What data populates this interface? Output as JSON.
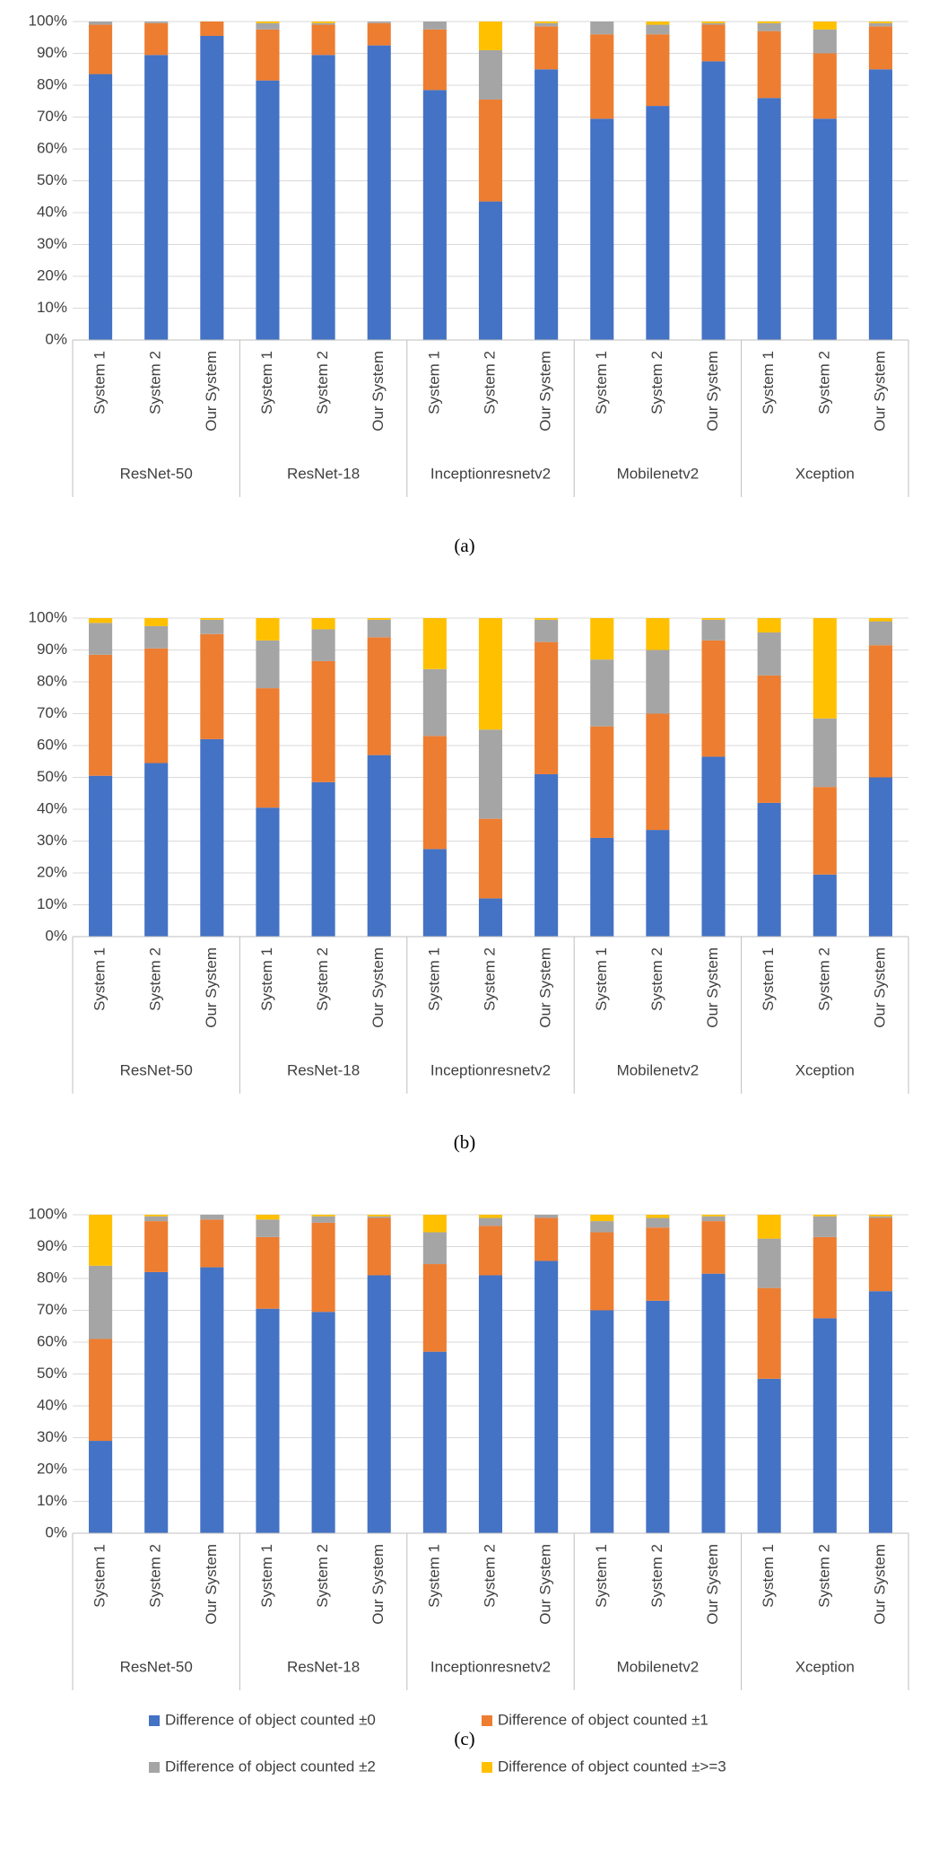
{
  "chart_data": [
    {
      "type": "bar",
      "stacked": true,
      "caption": "(a)",
      "categories": [
        "System 1",
        "System 2",
        "Our System",
        "System 1",
        "System 2",
        "Our System",
        "System 1",
        "System 2",
        "Our System",
        "System 1",
        "System 2",
        "Our System",
        "System 1",
        "System 2",
        "Our System"
      ],
      "groups": [
        "ResNet-50",
        "ResNet-18",
        "Inceptionresnetv2",
        "Mobilenetv2",
        "Xception"
      ],
      "ylim": [
        0,
        100
      ],
      "yticks": [
        {
          "value": 0,
          "label": "0%"
        },
        {
          "value": 10,
          "label": "10%"
        },
        {
          "value": 20,
          "label": "20%"
        },
        {
          "value": 30,
          "label": "30%"
        },
        {
          "value": 40,
          "label": "40%"
        },
        {
          "value": 50,
          "label": "50%"
        },
        {
          "value": 60,
          "label": "60%"
        },
        {
          "value": 70,
          "label": "70%"
        },
        {
          "value": 80,
          "label": "80%"
        },
        {
          "value": 90,
          "label": "90%"
        },
        {
          "value": 100,
          "label": "100%"
        }
      ],
      "grid": true,
      "series": [
        {
          "color": "#4472c4",
          "values": [
            83.5,
            89.5,
            95.5,
            81.5,
            89.5,
            92.5,
            78.5,
            43.5,
            85,
            69.5,
            73.5,
            87.5,
            76,
            69.5,
            85
          ]
        },
        {
          "color": "#ed7d31",
          "values": [
            15.5,
            10,
            4.5,
            16,
            9.5,
            7,
            19,
            32,
            13.5,
            26.5,
            22.5,
            11.5,
            21,
            20.5,
            13.5
          ]
        },
        {
          "color": "#a5a5a5",
          "values": [
            1,
            0.5,
            0,
            2,
            0.5,
            0.5,
            2.5,
            15.5,
            1,
            4,
            3,
            0.5,
            2.5,
            7.5,
            1
          ]
        },
        {
          "color": "#ffc000",
          "values": [
            0,
            0,
            0,
            0.5,
            0.5,
            0,
            0,
            9,
            0.5,
            0,
            1,
            0.5,
            0.5,
            2.5,
            0.5
          ]
        }
      ]
    },
    {
      "type": "bar",
      "stacked": true,
      "caption": "(b)",
      "categories": [
        "System 1",
        "System 2",
        "Our System",
        "System 1",
        "System 2",
        "Our System",
        "System 1",
        "System 2",
        "Our System",
        "System 1",
        "System 2",
        "Our System",
        "System 1",
        "System 2",
        "Our System"
      ],
      "groups": [
        "ResNet-50",
        "ResNet-18",
        "Inceptionresnetv2",
        "Mobilenetv2",
        "Xception"
      ],
      "ylim": [
        0,
        100
      ],
      "yticks": [
        {
          "value": 0,
          "label": "0%"
        },
        {
          "value": 10,
          "label": "10%"
        },
        {
          "value": 20,
          "label": "20%"
        },
        {
          "value": 30,
          "label": "30%"
        },
        {
          "value": 40,
          "label": "40%"
        },
        {
          "value": 50,
          "label": "50%"
        },
        {
          "value": 60,
          "label": "60%"
        },
        {
          "value": 70,
          "label": "70%"
        },
        {
          "value": 80,
          "label": "80%"
        },
        {
          "value": 90,
          "label": "90%"
        },
        {
          "value": 100,
          "label": "100%"
        }
      ],
      "grid": true,
      "series": [
        {
          "color": "#4472c4",
          "values": [
            50.5,
            54.5,
            62,
            40.5,
            48.5,
            57,
            27.5,
            12,
            51,
            31,
            33.5,
            56.5,
            42,
            19.5,
            50
          ]
        },
        {
          "color": "#ed7d31",
          "values": [
            38,
            36,
            33,
            37.5,
            38,
            37,
            35.5,
            25,
            41.5,
            35,
            36.5,
            36.5,
            40,
            27.5,
            41.5
          ]
        },
        {
          "color": "#a5a5a5",
          "values": [
            10,
            7,
            4.5,
            15,
            10,
            5.5,
            21,
            28,
            7,
            21,
            20,
            6.5,
            13.5,
            21.5,
            7.5
          ]
        },
        {
          "color": "#ffc000",
          "values": [
            1.5,
            2.5,
            0.5,
            7,
            3.5,
            0.5,
            16,
            35,
            0.5,
            13,
            10,
            0.5,
            4.5,
            31.5,
            1
          ]
        }
      ]
    },
    {
      "type": "bar",
      "stacked": true,
      "caption": "(c)",
      "categories": [
        "System 1",
        "System 2",
        "Our System",
        "System 1",
        "System 2",
        "Our System",
        "System 1",
        "System 2",
        "Our System",
        "System 1",
        "System 2",
        "Our System",
        "System 1",
        "System 2",
        "Our System"
      ],
      "groups": [
        "ResNet-50",
        "ResNet-18",
        "Inceptionresnetv2",
        "Mobilenetv2",
        "Xception"
      ],
      "ylim": [
        0,
        100
      ],
      "yticks": [
        {
          "value": 0,
          "label": "0%"
        },
        {
          "value": 10,
          "label": "10%"
        },
        {
          "value": 20,
          "label": "20%"
        },
        {
          "value": 30,
          "label": "30%"
        },
        {
          "value": 40,
          "label": "40%"
        },
        {
          "value": 50,
          "label": "50%"
        },
        {
          "value": 60,
          "label": "60%"
        },
        {
          "value": 70,
          "label": "70%"
        },
        {
          "value": 80,
          "label": "80%"
        },
        {
          "value": 90,
          "label": "90%"
        },
        {
          "value": 100,
          "label": "100%"
        }
      ],
      "grid": true,
      "legend": "bottom",
      "series": [
        {
          "name": "Difference of object counted ±0",
          "color": "#4472c4",
          "values": [
            29,
            82,
            83.5,
            70.5,
            69.5,
            81,
            57,
            81,
            85.5,
            70,
            73,
            81.5,
            48.5,
            67.5,
            76
          ]
        },
        {
          "name": "Difference of object counted ±1",
          "color": "#ed7d31",
          "values": [
            32,
            16,
            15,
            22.5,
            28,
            18,
            27.5,
            15.5,
            13.5,
            24.5,
            23,
            16.5,
            28.5,
            25.5,
            23
          ]
        },
        {
          "name": "Difference of object counted ±2",
          "color": "#a5a5a5",
          "values": [
            23,
            1.5,
            1.5,
            5.5,
            2,
            0.5,
            10,
            2.5,
            1,
            3.5,
            3,
            1.5,
            15.5,
            6.5,
            0.5
          ]
        },
        {
          "name": "Difference of object counted ±>=3",
          "color": "#ffc000",
          "values": [
            16,
            0.5,
            0,
            1.5,
            0.5,
            0.5,
            5.5,
            1,
            0,
            2,
            1,
            0.5,
            7.5,
            0.5,
            0.5
          ]
        }
      ]
    }
  ]
}
